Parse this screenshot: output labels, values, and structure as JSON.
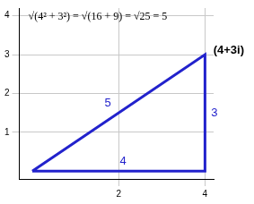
{
  "chart_data": {
    "type": "line",
    "title": "√(4² + 3²) = √(16 + 9) = √25 = 5",
    "x": [
      0,
      4,
      4,
      0
    ],
    "values": [
      0,
      0,
      3,
      0
    ],
    "color": "#2222cc",
    "xlim": [
      -0.3,
      4.2
    ],
    "ylim": [
      -0.2,
      4.2
    ],
    "xticks": [
      2,
      4
    ],
    "yticks": [
      1,
      2,
      3,
      4
    ],
    "grid": true,
    "annotations": [
      {
        "text": "5",
        "x": 1.75,
        "y": 1.75,
        "color": "#2222cc"
      },
      {
        "text": "4",
        "x": 2.1,
        "y": 0.25,
        "color": "#2222cc"
      },
      {
        "text": "3",
        "x": 4.22,
        "y": 1.5,
        "color": "#2222cc"
      },
      {
        "text": "(4+3i)",
        "x": 4.55,
        "y": 3.1,
        "color": "#000000"
      }
    ]
  }
}
